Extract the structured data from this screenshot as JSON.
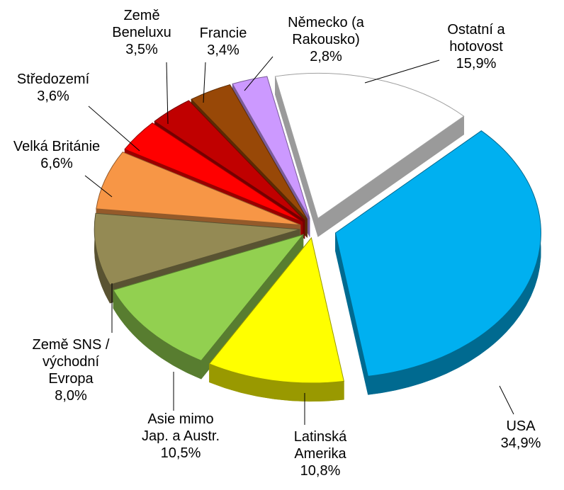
{
  "chart_data": {
    "type": "pie3d",
    "categories": [
      "Ostatní a\nhotovost",
      "USA",
      "Latinská\nAmerika",
      "Asie mimo\nJap. a Austr.",
      "Země SNS /\nvýchodní\nEvropa",
      "Velká Británie",
      "Středozemí",
      "Země\nBeneluxu",
      "Francie",
      "Německo (a\nRakousko)"
    ],
    "values": [
      15.9,
      34.9,
      10.8,
      10.5,
      8.0,
      6.6,
      3.6,
      3.5,
      3.4,
      2.8
    ],
    "value_labels": [
      "15,9%",
      "34,9%",
      "10,8%",
      "10,5%",
      "8,0%",
      "6,6%",
      "3,6%",
      "3,5%",
      "3,4%",
      "2,8%"
    ],
    "colors": [
      "#ffffff",
      "#00b0f0",
      "#ffff00",
      "#92d050",
      "#948a54",
      "#f79646",
      "#ff0000",
      "#c00000",
      "#984807",
      "#cc99ff"
    ]
  }
}
